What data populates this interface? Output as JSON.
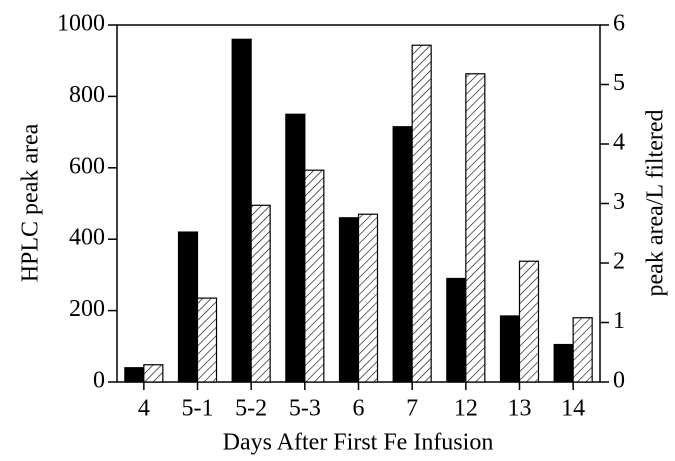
{
  "chart_data": {
    "type": "bar",
    "categories": [
      "4",
      "5-1",
      "5-2",
      "5-3",
      "6",
      "7",
      "12",
      "13",
      "14"
    ],
    "series": [
      {
        "color": "#000000",
        "values": [
          40,
          420,
          960,
          750,
          460,
          715,
          290,
          185,
          105
        ]
      },
      {
        "color": "#000000",
        "pattern": "hatch",
        "axis": "y2",
        "values": [
          0.29,
          1.41,
          2.97,
          3.56,
          2.82,
          5.66,
          5.18,
          2.03,
          1.08
        ]
      }
    ],
    "xlabel": "Days After First Fe Infusion",
    "ylabel": "HPLC peak area",
    "y2label": "peak area/L filtered",
    "ylim": [
      0,
      1000
    ],
    "yticks": [
      0,
      200,
      400,
      600,
      800,
      1000
    ],
    "y2lim": [
      0,
      6
    ],
    "y2ticks": [
      0,
      1,
      2,
      3,
      4,
      5,
      6
    ],
    "grid": false
  }
}
